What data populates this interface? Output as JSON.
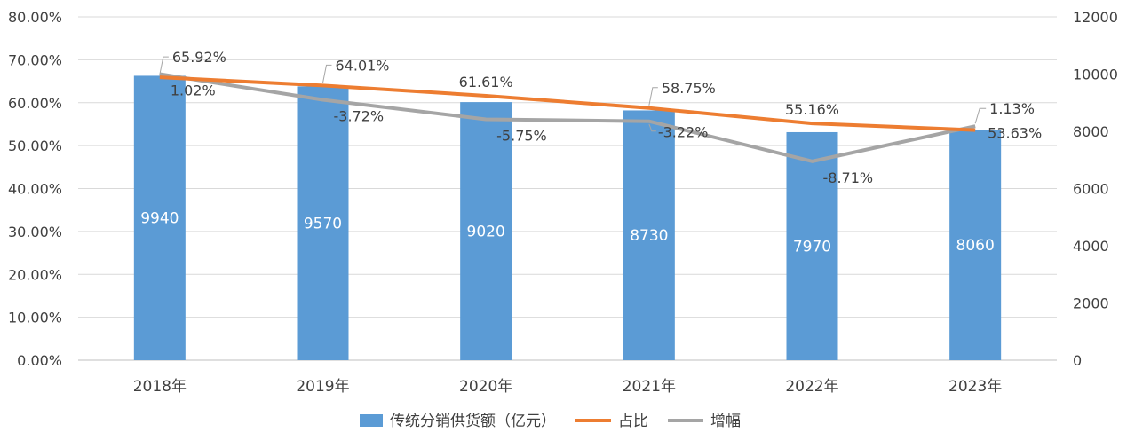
{
  "chart_data": {
    "type": "bar",
    "categories": [
      "2018年",
      "2019年",
      "2020年",
      "2021年",
      "2022年",
      "2023年"
    ],
    "series": [
      {
        "name": "传统分销供货额（亿元）",
        "type": "bar",
        "axis": "right",
        "color": "#5B9BD5",
        "values": [
          9940,
          9570,
          9020,
          8730,
          7970,
          8060
        ],
        "labels": [
          "9940",
          "9570",
          "9020",
          "8730",
          "7970",
          "8060"
        ]
      },
      {
        "name": "占比",
        "type": "line",
        "axis": "left",
        "color": "#ED7D31",
        "values": [
          65.92,
          64.01,
          61.61,
          58.75,
          55.16,
          53.63
        ],
        "labels": [
          "65.92%",
          "64.01%",
          "61.61%",
          "58.75%",
          "55.16%",
          "53.63%"
        ]
      },
      {
        "name": "增幅",
        "type": "line",
        "axis": "right_mapped",
        "color": "#A5A5A5",
        "values": [
          1.02,
          -3.72,
          -5.75,
          -3.22,
          -8.71,
          1.13
        ],
        "labels": [
          "1.02%",
          "-3.72%",
          "-5.75%",
          "-3.22%",
          "-8.71%",
          "1.13%"
        ],
        "plotted_as": [
          10000,
          9100,
          8420,
          8350,
          6950,
          8180
        ]
      }
    ],
    "y_left": {
      "ylim": [
        0,
        80
      ],
      "ticks": [
        "0.00%",
        "10.00%",
        "20.00%",
        "30.00%",
        "40.00%",
        "50.00%",
        "60.00%",
        "70.00%",
        "80.00%"
      ]
    },
    "y_right": {
      "ylim": [
        0,
        12000
      ],
      "ticks": [
        "0",
        "2000",
        "4000",
        "6000",
        "8000",
        "10000",
        "12000"
      ]
    },
    "grid": true,
    "legend_position": "bottom"
  }
}
